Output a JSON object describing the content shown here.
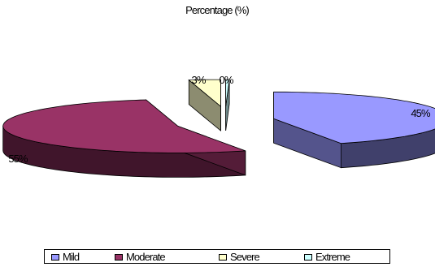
{
  "chart_data": {
    "type": "pie",
    "title": "Percentage (%)",
    "categories": [
      "Mild",
      "Moderate",
      "Severe",
      "Extreme"
    ],
    "values": [
      45,
      55,
      3,
      0
    ],
    "data_labels": [
      "45%",
      "55%",
      "3%",
      "0%"
    ],
    "colors": [
      "#9999ff",
      "#993366",
      "#ffffcc",
      "#ccffff"
    ],
    "style": "3d-exploded",
    "legend": "bottom"
  }
}
